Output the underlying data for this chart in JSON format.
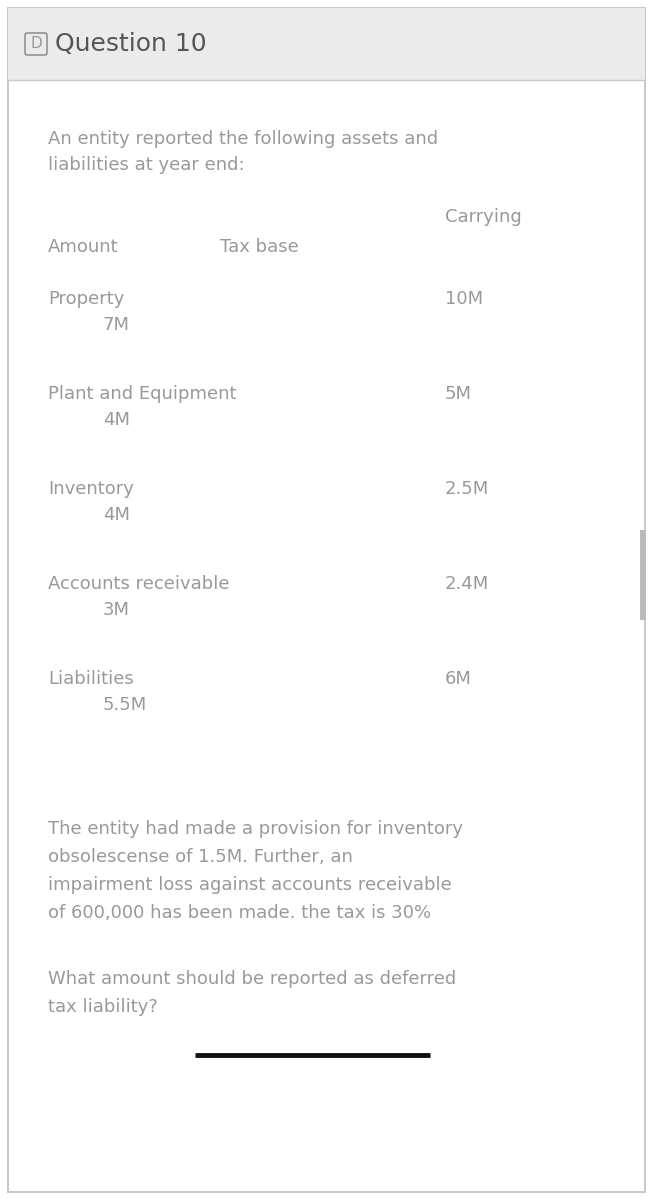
{
  "title": "Question 10",
  "title_icon": "D",
  "header_bg": "#ebebeb",
  "body_bg": "#ffffff",
  "border_color": "#c8c8c8",
  "text_color": "#999999",
  "dark_text": "#555555",
  "intro_line1": "An entity reported the following assets and",
  "intro_line2": "liabilities at year end:",
  "rows": [
    {
      "label": "Property",
      "taxbase": "7M",
      "carrying": "10M"
    },
    {
      "label": "Plant and Equipment",
      "taxbase": "4M",
      "carrying": "5M"
    },
    {
      "label": "Inventory",
      "taxbase": "4M",
      "carrying": "2.5M"
    },
    {
      "label": "Accounts receivable",
      "taxbase": "3M",
      "carrying": "2.4M"
    },
    {
      "label": "Liabilities",
      "taxbase": "5.5M",
      "carrying": "6M"
    }
  ],
  "note_lines": [
    "The entity had made a provision for inventory",
    "obsolescense of 1.5M. Further, an",
    "impairment loss against accounts receivable",
    "of 600,000 has been made. the tax is 30%"
  ],
  "question_lines": [
    "What amount should be reported as deferred",
    "tax liability?"
  ],
  "underline_color": "#111111",
  "scrollbar_color": "#bbbbbb",
  "fig_w": 6.53,
  "fig_h": 12.0,
  "dpi": 100
}
